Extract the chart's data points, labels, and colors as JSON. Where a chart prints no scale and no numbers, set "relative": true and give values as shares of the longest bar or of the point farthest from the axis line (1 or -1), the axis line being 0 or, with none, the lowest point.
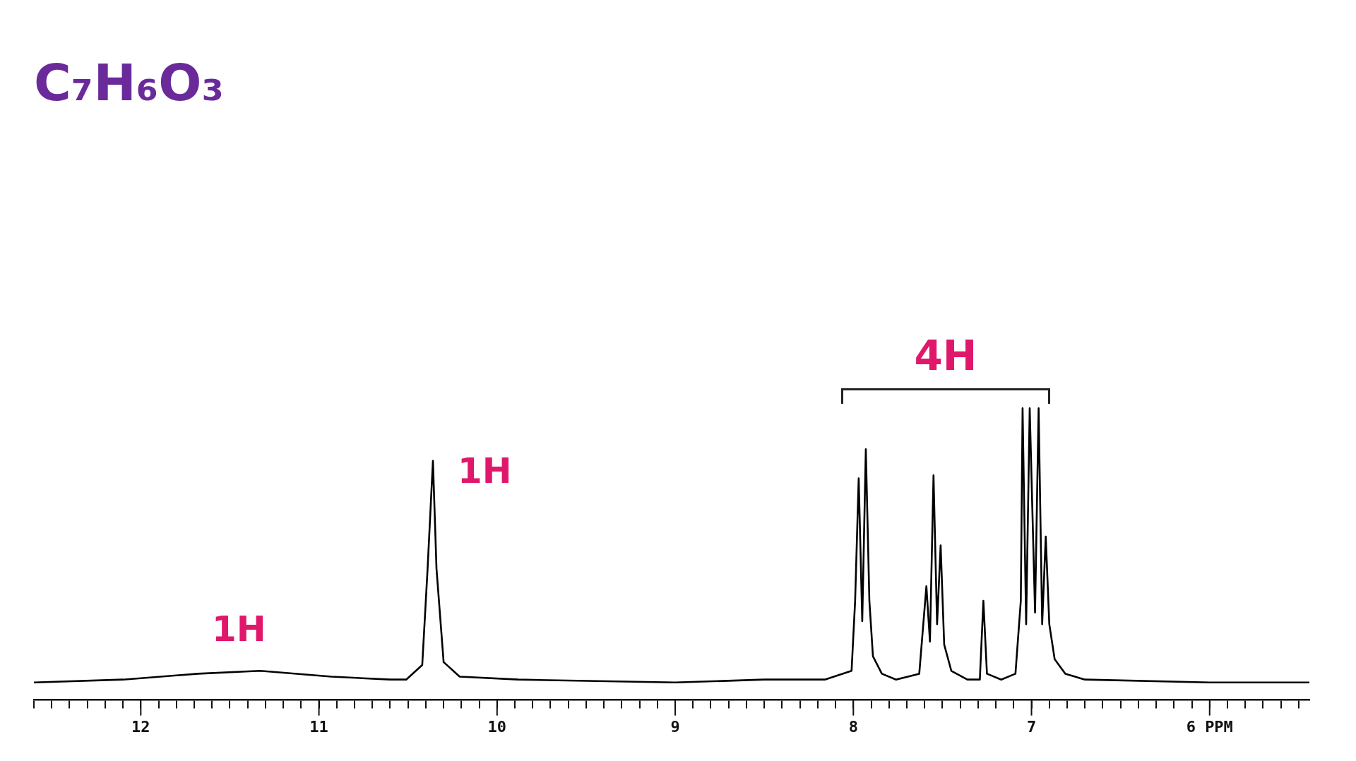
{
  "chart_data": {
    "type": "line",
    "title": "C₇H₆O₃",
    "relative": true,
    "xlim": [
      12.6,
      5.44
    ],
    "xticks": [
      {
        "value": 12.6,
        "label": null
      },
      {
        "value": 12.5,
        "label": null
      },
      {
        "value": 12.4,
        "label": null
      },
      {
        "value": 12.3,
        "label": null
      },
      {
        "value": 12.2,
        "label": null
      },
      {
        "value": 12.1,
        "label": null
      },
      12,
      {
        "value": 11.9,
        "label": null
      },
      {
        "value": 11.8,
        "label": null
      },
      {
        "value": 11.7,
        "label": null
      },
      {
        "value": 11.6,
        "label": null
      },
      {
        "value": 11.5,
        "label": null
      },
      {
        "value": 11.4,
        "label": null
      },
      {
        "value": 11.3,
        "label": null
      },
      {
        "value": 11.2,
        "label": null
      },
      {
        "value": 11.1,
        "label": null
      },
      11,
      {
        "value": 10.9,
        "label": null
      },
      {
        "value": 10.8,
        "label": null
      },
      {
        "value": 10.7,
        "label": null
      },
      {
        "value": 10.6,
        "label": null
      },
      {
        "value": 10.5,
        "label": null
      },
      {
        "value": 10.4,
        "label": null
      },
      {
        "value": 10.3,
        "label": null
      },
      {
        "value": 10.2,
        "label": null
      },
      {
        "value": 10.1,
        "label": null
      },
      10,
      {
        "value": 9.9,
        "label": null
      },
      {
        "value": 9.8,
        "label": null
      },
      {
        "value": 9.7,
        "label": null
      },
      {
        "value": 9.6,
        "label": null
      },
      {
        "value": 9.5,
        "label": null
      },
      {
        "value": 9.4,
        "label": null
      },
      {
        "value": 9.3,
        "label": null
      },
      {
        "value": 9.2,
        "label": null
      },
      {
        "value": 9.1,
        "label": null
      },
      9,
      {
        "value": 8.9,
        "label": null
      },
      {
        "value": 8.8,
        "label": null
      },
      {
        "value": 8.7,
        "label": null
      },
      {
        "value": 8.6,
        "label": null
      },
      {
        "value": 8.5,
        "label": null
      },
      {
        "value": 8.4,
        "label": null
      },
      {
        "value": 8.3,
        "label": null
      },
      {
        "value": 8.2,
        "label": null
      },
      {
        "value": 8.1,
        "label": null
      },
      8,
      {
        "value": 7.9,
        "label": null
      },
      {
        "value": 7.8,
        "label": null
      },
      {
        "value": 7.7,
        "label": null
      },
      {
        "value": 7.6,
        "label": null
      },
      {
        "value": 7.5,
        "label": null
      },
      {
        "value": 7.4,
        "label": null
      },
      {
        "value": 7.3,
        "label": null
      },
      {
        "value": 7.2,
        "label": null
      },
      {
        "value": 7.1,
        "label": null
      },
      7,
      {
        "value": 6.9,
        "label": null
      },
      {
        "value": 6.8,
        "label": null
      },
      {
        "value": 6.7,
        "label": null
      },
      {
        "value": 6.6,
        "label": null
      },
      {
        "value": 6.5,
        "label": null
      },
      {
        "value": 6.4,
        "label": null
      },
      {
        "value": 6.3,
        "label": null
      },
      {
        "value": 6.2,
        "label": null
      },
      {
        "value": 6.1,
        "label": null
      },
      {
        "value": 6,
        "label": "6 PPM"
      },
      {
        "value": 5.9,
        "label": null
      },
      {
        "value": 5.8,
        "label": null
      },
      {
        "value": 5.7,
        "label": null
      },
      {
        "value": 5.6,
        "label": null
      },
      {
        "value": 5.5,
        "label": null
      }
    ],
    "series": [
      {
        "color": "#000000",
        "x": [
          12.6,
          12.1,
          11.68,
          11.33,
          10.93,
          10.6,
          10.51,
          10.42,
          10.39,
          10.36,
          10.34,
          10.3,
          10.21,
          9.88,
          9.0,
          8.5,
          8.16,
          8.01,
          7.99,
          7.97,
          7.95,
          7.93,
          7.91,
          7.89,
          7.84,
          7.76,
          7.63,
          7.59,
          7.57,
          7.55,
          7.53,
          7.51,
          7.49,
          7.45,
          7.36,
          7.29,
          7.27,
          7.25,
          7.17,
          7.09,
          7.06,
          7.05,
          7.03,
          7.01,
          6.98,
          6.96,
          6.94,
          6.92,
          6.9,
          6.87,
          6.81,
          6.7,
          6.0,
          5.44
        ],
        "values": [
          0.06,
          0.07,
          0.09,
          0.1,
          0.08,
          0.07,
          0.07,
          0.12,
          0.45,
          0.82,
          0.45,
          0.13,
          0.08,
          0.07,
          0.06,
          0.07,
          0.07,
          0.1,
          0.34,
          0.76,
          0.27,
          0.86,
          0.34,
          0.15,
          0.09,
          0.07,
          0.09,
          0.39,
          0.2,
          0.77,
          0.26,
          0.53,
          0.19,
          0.1,
          0.07,
          0.07,
          0.34,
          0.09,
          0.07,
          0.09,
          0.34,
          1.0,
          0.26,
          1.0,
          0.3,
          1.0,
          0.26,
          0.56,
          0.26,
          0.14,
          0.09,
          0.07,
          0.06,
          0.06
        ]
      }
    ],
    "annotations": [
      {
        "text": "1H",
        "x": 11.33,
        "y": 0.1
      },
      {
        "text": "1H",
        "x": 10.36,
        "y": 0.82
      },
      "4H"
    ],
    "legend": false,
    "marker": "none",
    "line_style": "solid"
  }
}
